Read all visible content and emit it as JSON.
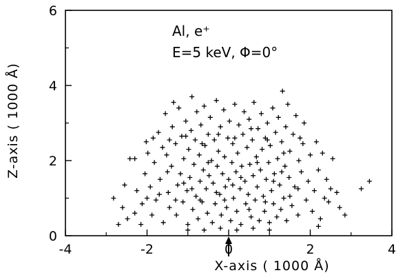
{
  "chart_data": {
    "type": "scatter",
    "marker": "+",
    "color": "#000000",
    "xlabel": "X-axis ( 1000 Å)",
    "ylabel": "Z-axis ( 1000 Å)",
    "xlim": [
      -4,
      4
    ],
    "ylim": [
      0,
      6
    ],
    "xticks": [
      -4,
      -2,
      0,
      2,
      4
    ],
    "yticks": [
      0,
      2,
      4,
      6
    ],
    "x_tick_labels": [
      "-4",
      "-2",
      "0",
      "2",
      "4"
    ],
    "y_tick_labels": [
      "0",
      "2",
      "4",
      "6"
    ],
    "annotations": {
      "line1": "Al, e⁺",
      "line2": "E=5 keV, Φ=0°"
    },
    "incidence_arrow_x": 0,
    "series": [
      {
        "points": [
          [
            -2.82,
            1.0
          ],
          [
            -2.6,
            0.75
          ],
          [
            -2.55,
            1.35
          ],
          [
            -2.48,
            0.45
          ],
          [
            -2.42,
            2.05
          ],
          [
            -2.3,
            2.05
          ],
          [
            -2.3,
            0.6
          ],
          [
            -2.25,
            1.2
          ],
          [
            -2.15,
            0.3
          ],
          [
            -2.12,
            0.85
          ],
          [
            -2.05,
            1.65
          ],
          [
            -2.02,
            2.5
          ],
          [
            -1.98,
            2.2
          ],
          [
            -1.92,
            1.3
          ],
          [
            -1.88,
            0.55
          ],
          [
            -1.82,
            1.95
          ],
          [
            -1.78,
            0.95
          ],
          [
            -1.72,
            2.75
          ],
          [
            -1.68,
            1.5
          ],
          [
            -1.62,
            2.35
          ],
          [
            -1.6,
            0.35
          ],
          [
            -1.55,
            3.25
          ],
          [
            -1.52,
            2.15
          ],
          [
            -1.48,
            1.15
          ],
          [
            -1.45,
            0.75
          ],
          [
            -1.4,
            1.85
          ],
          [
            -1.38,
            2.9
          ],
          [
            -1.35,
            3.55
          ],
          [
            -1.3,
            2.45
          ],
          [
            -1.28,
            0.55
          ],
          [
            -1.25,
            1.35
          ],
          [
            -1.22,
            3.4
          ],
          [
            -1.18,
            1.65
          ],
          [
            -1.15,
            2.65
          ],
          [
            -1.12,
            0.9
          ],
          [
            -1.1,
            2.05
          ],
          [
            -1.05,
            3.05
          ],
          [
            -1.02,
            1.2
          ],
          [
            -1.0,
            0.3
          ],
          [
            -0.98,
            2.3
          ],
          [
            -0.95,
            1.55
          ],
          [
            -0.92,
            2.8
          ],
          [
            -0.9,
            3.7
          ],
          [
            -0.88,
            0.7
          ],
          [
            -0.85,
            1.9
          ],
          [
            -0.82,
            2.55
          ],
          [
            -0.8,
            1.05
          ],
          [
            -0.78,
            3.3
          ],
          [
            -0.75,
            0.45
          ],
          [
            -0.72,
            2.15
          ],
          [
            -0.7,
            1.45
          ],
          [
            -0.68,
            2.95
          ],
          [
            -0.65,
            0.9
          ],
          [
            -0.62,
            1.75
          ],
          [
            -0.6,
            3.45
          ],
          [
            -0.58,
            2.4
          ],
          [
            -0.55,
            1.25
          ],
          [
            -0.52,
            0.6
          ],
          [
            -0.5,
            2.7
          ],
          [
            -0.48,
            1.6
          ],
          [
            -0.45,
            3.15
          ],
          [
            -0.42,
            2.0
          ],
          [
            -0.4,
            0.35
          ],
          [
            -0.38,
            1.4
          ],
          [
            -0.35,
            2.55
          ],
          [
            -0.33,
            0.85
          ],
          [
            -0.3,
            3.6
          ],
          [
            -0.28,
            1.85
          ],
          [
            -0.25,
            2.25
          ],
          [
            -0.22,
            1.1
          ],
          [
            -0.2,
            2.9
          ],
          [
            -0.18,
            0.55
          ],
          [
            -0.15,
            1.65
          ],
          [
            -0.12,
            3.35
          ],
          [
            -0.1,
            2.1
          ],
          [
            -0.08,
            1.3
          ],
          [
            -0.05,
            0.75
          ],
          [
            -0.02,
            2.6
          ],
          [
            0.0,
            1.5
          ],
          [
            0.02,
            3.05
          ],
          [
            0.05,
            0.4
          ],
          [
            0.08,
            1.95
          ],
          [
            0.1,
            2.45
          ],
          [
            0.12,
            1.0
          ],
          [
            0.15,
            3.5
          ],
          [
            0.18,
            1.7
          ],
          [
            0.2,
            0.65
          ],
          [
            0.22,
            2.2
          ],
          [
            0.25,
            2.95
          ],
          [
            0.28,
            1.25
          ],
          [
            0.3,
            0.3
          ],
          [
            0.32,
            1.85
          ],
          [
            0.35,
            2.7
          ],
          [
            0.38,
            3.3
          ],
          [
            0.4,
            1.45
          ],
          [
            0.42,
            0.85
          ],
          [
            0.45,
            2.35
          ],
          [
            0.48,
            1.1
          ],
          [
            0.5,
            3.1
          ],
          [
            0.52,
            1.9
          ],
          [
            0.55,
            0.5
          ],
          [
            0.58,
            2.55
          ],
          [
            0.6,
            1.6
          ],
          [
            0.62,
            3.55
          ],
          [
            0.65,
            0.95
          ],
          [
            0.68,
            2.1
          ],
          [
            0.7,
            1.3
          ],
          [
            0.72,
            2.85
          ],
          [
            0.75,
            0.4
          ],
          [
            0.78,
            1.75
          ],
          [
            0.8,
            3.25
          ],
          [
            0.82,
            2.3
          ],
          [
            0.85,
            1.05
          ],
          [
            0.88,
            0.65
          ],
          [
            0.9,
            2.6
          ],
          [
            0.92,
            1.5
          ],
          [
            0.95,
            3.0
          ],
          [
            0.98,
            1.95
          ],
          [
            1.0,
            0.35
          ],
          [
            1.02,
            2.4
          ],
          [
            1.05,
            1.2
          ],
          [
            1.08,
            3.4
          ],
          [
            1.1,
            0.85
          ],
          [
            1.12,
            1.65
          ],
          [
            1.15,
            2.75
          ],
          [
            1.18,
            0.5
          ],
          [
            1.2,
            2.05
          ],
          [
            1.22,
            3.15
          ],
          [
            1.25,
            1.35
          ],
          [
            1.28,
            0.7
          ],
          [
            1.3,
            2.5
          ],
          [
            1.32,
            3.85
          ],
          [
            1.35,
            1.0
          ],
          [
            1.38,
            1.85
          ],
          [
            1.4,
            2.9
          ],
          [
            1.42,
            0.4
          ],
          [
            1.45,
            3.5
          ],
          [
            1.48,
            1.55
          ],
          [
            1.5,
            2.25
          ],
          [
            1.55,
            0.8
          ],
          [
            1.58,
            2.7
          ],
          [
            1.62,
            1.3
          ],
          [
            1.65,
            3.2
          ],
          [
            1.7,
            0.55
          ],
          [
            1.72,
            2.0
          ],
          [
            1.78,
            1.7
          ],
          [
            1.82,
            2.45
          ],
          [
            1.85,
            3.0
          ],
          [
            1.9,
            0.95
          ],
          [
            1.95,
            1.45
          ],
          [
            2.0,
            2.15
          ],
          [
            2.05,
            0.65
          ],
          [
            2.1,
            1.2
          ],
          [
            2.15,
            2.5
          ],
          [
            2.2,
            1.75
          ],
          [
            2.25,
            0.45
          ],
          [
            2.3,
            2.2
          ],
          [
            2.35,
            1.0
          ],
          [
            2.4,
            1.5
          ],
          [
            2.45,
            0.9
          ],
          [
            2.5,
            1.25
          ],
          [
            2.55,
            2.05
          ],
          [
            2.65,
            1.15
          ],
          [
            2.72,
            0.75
          ],
          [
            2.85,
            0.55
          ],
          [
            3.25,
            1.25
          ],
          [
            3.45,
            1.45
          ],
          [
            -2.7,
            0.3
          ],
          [
            -2.0,
            1.0
          ],
          [
            -1.7,
            1.1
          ],
          [
            -1.5,
            1.7
          ],
          [
            -1.3,
            0.95
          ],
          [
            -1.1,
            1.4
          ],
          [
            -0.9,
            1.25
          ],
          [
            -0.7,
            0.95
          ],
          [
            -0.5,
            1.95
          ],
          [
            -0.3,
            1.15
          ],
          [
            -0.1,
            0.95
          ],
          [
            0.1,
            1.35
          ],
          [
            0.3,
            1.55
          ],
          [
            0.5,
            0.7
          ],
          [
            0.7,
            1.95
          ],
          [
            0.9,
            0.9
          ],
          [
            1.1,
            1.45
          ],
          [
            1.3,
            1.7
          ],
          [
            1.5,
            1.05
          ],
          [
            1.7,
            1.25
          ],
          [
            -1.85,
            2.6
          ],
          [
            -1.45,
            2.55
          ],
          [
            -1.05,
            2.65
          ],
          [
            -0.65,
            2.45
          ],
          [
            -0.25,
            2.7
          ],
          [
            0.15,
            2.6
          ],
          [
            0.55,
            2.85
          ],
          [
            0.95,
            2.55
          ],
          [
            1.35,
            2.2
          ],
          [
            1.75,
            2.6
          ],
          [
            -0.6,
            0.15
          ],
          [
            -0.2,
            0.2
          ],
          [
            0.2,
            0.15
          ],
          [
            0.6,
            0.2
          ],
          [
            1.0,
            0.15
          ],
          [
            -1.0,
            0.15
          ],
          [
            2.2,
            0.25
          ]
        ]
      }
    ]
  }
}
